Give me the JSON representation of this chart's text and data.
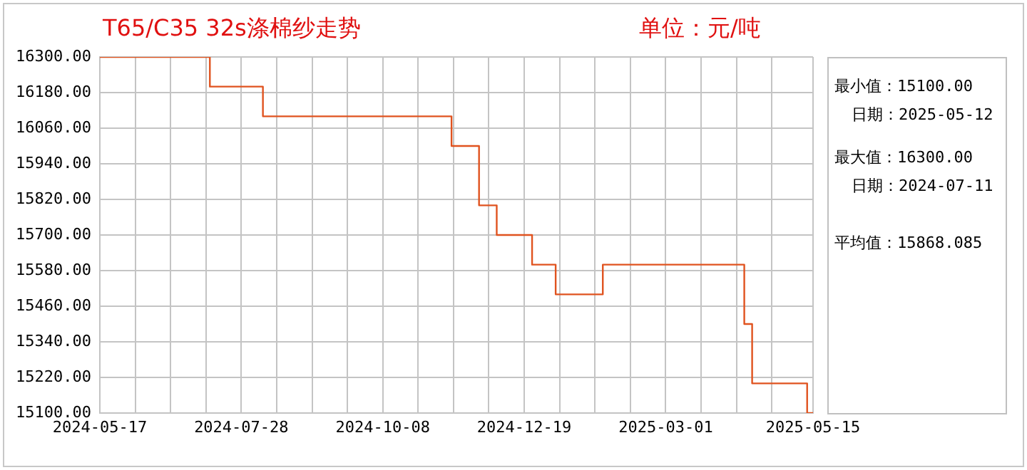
{
  "chart_data": {
    "type": "step",
    "title": "T65/C35 32s涤棉纱走势",
    "subtitle": "单位：元/吨",
    "annotations": [
      "最小值：15100.00",
      "日期：2025-05-12",
      "最大值：16300.00",
      "日期：2024-07-11",
      "平均值：15868.085"
    ],
    "x": [
      "2024-05-17",
      "2024-07-12",
      "2024-08-08",
      "2024-11-12",
      "2024-11-26",
      "2024-12-05",
      "2024-12-23",
      "2025-01-04",
      "2025-01-28",
      "2025-04-10",
      "2025-04-14",
      "2025-05-12",
      "2025-05-15"
    ],
    "series": [
      {
        "color": "#e0531f",
        "values": [
          16300,
          16200,
          16100,
          16000,
          15800,
          15700,
          15600,
          15500,
          15600,
          15400,
          15200,
          15100,
          15100
        ]
      }
    ],
    "xlim": [
      "2024-05-17",
      "2025-05-15"
    ],
    "xticks": [
      "2024-05-17",
      {
        "value": "2024-06-04",
        "label": null
      },
      {
        "value": "2024-06-22",
        "label": null
      },
      {
        "value": "2024-07-10",
        "label": null
      },
      "2024-07-28",
      {
        "value": "2024-08-15",
        "label": null
      },
      {
        "value": "2024-09-02",
        "label": null
      },
      {
        "value": "2024-09-20",
        "label": null
      },
      "2024-10-08",
      {
        "value": "2024-10-26",
        "label": null
      },
      {
        "value": "2024-11-13",
        "label": null
      },
      {
        "value": "2024-12-01",
        "label": null
      },
      "2024-12-19",
      {
        "value": "2025-01-06",
        "label": null
      },
      {
        "value": "2025-01-24",
        "label": null
      },
      {
        "value": "2025-02-11",
        "label": null
      },
      "2025-03-01",
      {
        "value": "2025-03-19",
        "label": null
      },
      {
        "value": "2025-04-06",
        "label": null
      },
      {
        "value": "2025-04-24",
        "label": null
      },
      "2025-05-15"
    ],
    "ylim": [
      15100,
      16300
    ],
    "yticks": [
      {
        "value": 15100,
        "label": "15100.00"
      },
      {
        "value": 15220,
        "label": "15220.00"
      },
      {
        "value": 15340,
        "label": "15340.00"
      },
      {
        "value": 15460,
        "label": "15460.00"
      },
      {
        "value": 15580,
        "label": "15580.00"
      },
      {
        "value": 15700,
        "label": "15700.00"
      },
      {
        "value": 15820,
        "label": "15820.00"
      },
      {
        "value": 15940,
        "label": "15940.00"
      },
      {
        "value": 16060,
        "label": "16060.00"
      },
      {
        "value": 16180,
        "label": "16180.00"
      },
      {
        "value": 16300,
        "label": "16300.00"
      }
    ],
    "grid": true,
    "legend": false,
    "marker": "none",
    "line_style": "solid"
  }
}
